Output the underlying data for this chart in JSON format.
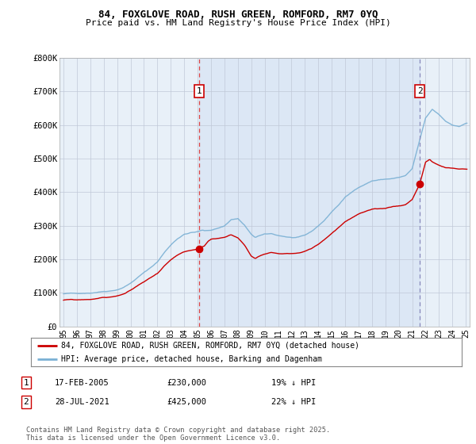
{
  "title_line1": "84, FOXGLOVE ROAD, RUSH GREEN, ROMFORD, RM7 0YQ",
  "title_line2": "Price paid vs. HM Land Registry's House Price Index (HPI)",
  "legend_label1": "84, FOXGLOVE ROAD, RUSH GREEN, ROMFORD, RM7 0YQ (detached house)",
  "legend_label2": "HPI: Average price, detached house, Barking and Dagenham",
  "annotation1_label": "1",
  "annotation1_date": "17-FEB-2005",
  "annotation1_price": "£230,000",
  "annotation1_hpi": "19% ↓ HPI",
  "annotation2_label": "2",
  "annotation2_date": "28-JUL-2021",
  "annotation2_price": "£425,000",
  "annotation2_hpi": "22% ↓ HPI",
  "footer": "Contains HM Land Registry data © Crown copyright and database right 2025.\nThis data is licensed under the Open Government Licence v3.0.",
  "price_color": "#cc0000",
  "hpi_color": "#7ab0d4",
  "vline1_color": "#dd4444",
  "vline2_color": "#8888bb",
  "bg_fill_color": "#ddeeff",
  "chart_bg_color": "#f0f4f8",
  "background_color": "#ffffff",
  "ylim": [
    0,
    800000
  ],
  "yticks": [
    0,
    100000,
    200000,
    300000,
    400000,
    500000,
    600000,
    700000,
    800000
  ],
  "ytick_labels": [
    "£0",
    "£100K",
    "£200K",
    "£300K",
    "£400K",
    "£500K",
    "£600K",
    "£700K",
    "£800K"
  ],
  "sale1_year": 2005.12,
  "sale2_year": 2021.57,
  "sale1_price": 230000,
  "sale2_price": 425000,
  "xlim_left": 1994.7,
  "xlim_right": 2025.3
}
